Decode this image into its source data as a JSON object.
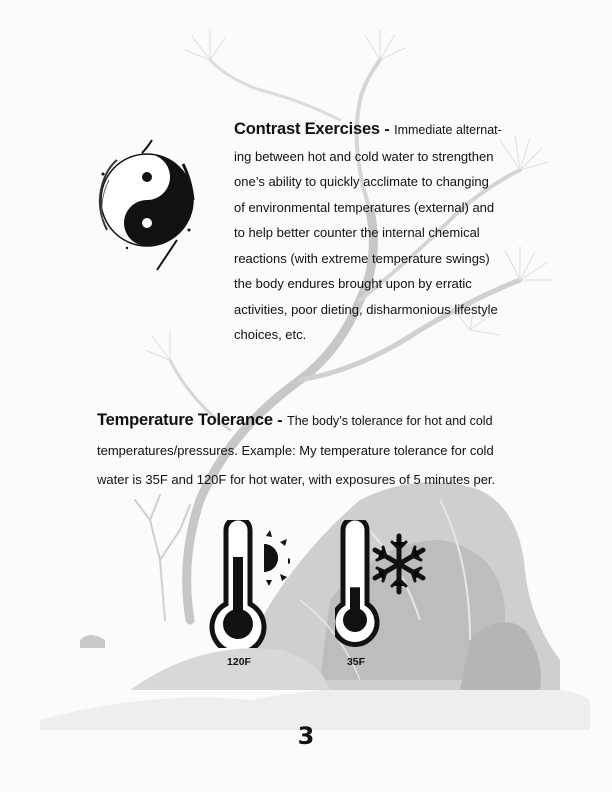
{
  "contrast": {
    "heading": "Contrast Exercises",
    "dash": " - ",
    "first_tail": "Immediate alternat-",
    "lines": [
      "ing between hot and cold water to strengthen",
      "one’s ability to quickly acclimate to changing",
      "of environmental temperatures (external) and",
      "to help better counter the internal chemical",
      "reactions (with extreme temperature swings)",
      "the body endures brought upon by erratic",
      "activities, poor dieting, disharmonious lifestyle",
      "choices, etc."
    ]
  },
  "tolerance": {
    "heading": "Temperature Tolerance",
    "dash": " - ",
    "first_tail": " The body’s tolerance for hot and cold",
    "lines": [
      "temperatures/pressures.  Example:  My temperature tolerance for cold",
      "water is 35F and 120F for hot water, with exposures of 5 minutes per."
    ]
  },
  "thermometers": {
    "hot": {
      "label": "120F",
      "icon": "thermometer-hot-sun-icon",
      "level": 0.72
    },
    "cold": {
      "label": "35F",
      "icon": "thermometer-cold-snowflake-icon",
      "level": 0.35
    }
  },
  "page_number": "3"
}
